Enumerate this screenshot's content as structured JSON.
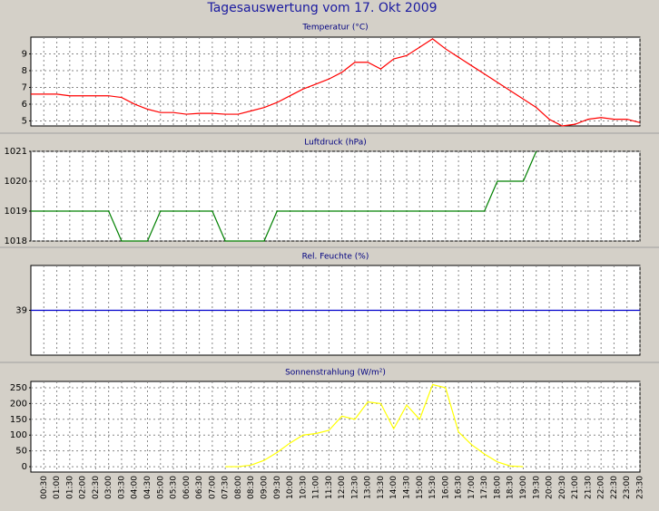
{
  "title": "Tagesauswertung vom 17. Okt 2009",
  "chart_data": [
    {
      "type": "line",
      "title": "Temperatur (°C)",
      "color": "#ff0000",
      "grid": true,
      "ylim": [
        4.7,
        10
      ],
      "yticks": [
        5,
        6,
        7,
        8,
        9
      ],
      "values": [
        6.6,
        6.6,
        6.6,
        6.5,
        6.5,
        6.5,
        6.5,
        6.4,
        6.0,
        5.7,
        5.5,
        5.5,
        5.4,
        5.45,
        5.45,
        5.4,
        5.4,
        5.6,
        5.8,
        6.1,
        6.5,
        6.9,
        7.2,
        7.5,
        7.9,
        8.5,
        8.5,
        8.1,
        8.7,
        8.9,
        9.4,
        9.9,
        9.3,
        8.8,
        8.3,
        7.8,
        7.3,
        6.8,
        6.3,
        5.8,
        5.1,
        4.7,
        4.8,
        5.1,
        5.2,
        5.1,
        5.1,
        4.9
      ]
    },
    {
      "type": "line",
      "title": "Luftdruck (hPa)",
      "color": "#008000",
      "grid": true,
      "ylim": [
        1018,
        1021
      ],
      "yticks": [
        1018,
        1019,
        1020,
        1021
      ],
      "values": [
        1019,
        1019,
        1019,
        1019,
        1019,
        1019,
        1019,
        1018,
        1018,
        1018,
        1019,
        1019,
        1019,
        1019,
        1019,
        1018,
        1018,
        1018,
        1018,
        1019,
        1019,
        1019,
        1019,
        1019,
        1019,
        1019,
        1019,
        1019,
        1019,
        1019,
        1019,
        1019,
        1019,
        1019,
        1019,
        1019,
        1020,
        1020,
        1020,
        1021,
        null,
        null,
        null,
        null,
        null,
        null,
        null,
        null
      ]
    },
    {
      "type": "line",
      "title": "Rel. Feuchte (%)",
      "color": "#0000cc",
      "grid": true,
      "ylim": [
        38,
        40
      ],
      "yticks": [
        39
      ],
      "values": [
        39,
        39,
        39,
        39,
        39,
        39,
        39,
        39,
        39,
        39,
        39,
        39,
        39,
        39,
        39,
        39,
        39,
        39,
        39,
        39,
        39,
        39,
        39,
        39,
        39,
        39,
        39,
        39,
        39,
        39,
        39,
        39,
        39,
        39,
        39,
        39,
        39,
        39,
        39,
        39,
        39,
        39,
        39,
        39,
        39,
        39,
        39,
        39
      ]
    },
    {
      "type": "line",
      "title": "Sonnenstrahlung (W/m²)",
      "color": "#ffff00",
      "grid": true,
      "ylim": [
        -17,
        270
      ],
      "yticks": [
        0,
        50,
        100,
        150,
        200,
        250
      ],
      "categories": [
        null,
        "00:30",
        "01:00",
        "01:30",
        "02:00",
        "02:30",
        "03:00",
        "03:30",
        "04:00",
        "04:30",
        "05:00",
        "05:30",
        "06:00",
        "06:30",
        "07:00",
        "07:30",
        "08:00",
        "08:30",
        "09:00",
        "09:30",
        "10:00",
        "10:30",
        "11:00",
        "11:30",
        "12:00",
        "12:30",
        "13:00",
        "13:30",
        "14:00",
        "14:30",
        "15:00",
        "15:30",
        "16:00",
        "16:30",
        "17:00",
        "17:30",
        "18:00",
        "18:30",
        "19:00",
        "19:30",
        "20:00",
        "20:30",
        "21:00",
        "21:30",
        "22:00",
        "22:30",
        "23:00",
        "23:30"
      ],
      "values": [
        null,
        null,
        null,
        null,
        null,
        null,
        null,
        null,
        null,
        null,
        null,
        null,
        null,
        null,
        null,
        0,
        0,
        5,
        20,
        45,
        75,
        100,
        105,
        115,
        160,
        150,
        205,
        200,
        120,
        195,
        150,
        260,
        250,
        110,
        70,
        40,
        15,
        2,
        0,
        null,
        null,
        null,
        null,
        null,
        null,
        null,
        null,
        null
      ]
    }
  ]
}
